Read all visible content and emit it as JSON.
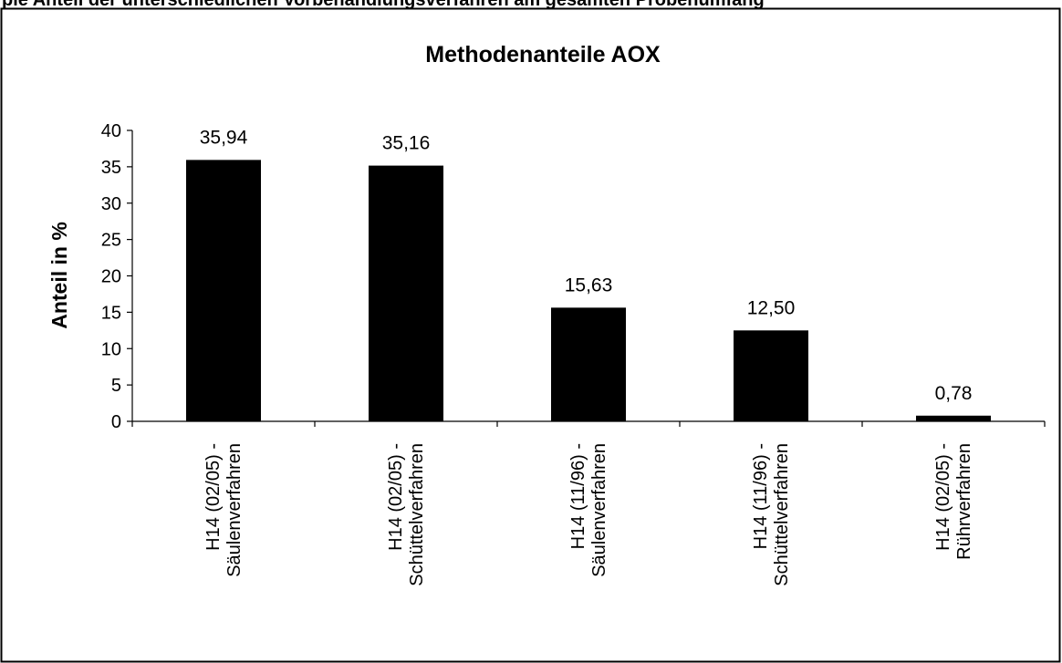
{
  "header_text": "pie Anteil der unterschiedlichen Vorbehandlungsverfahren am gesamten Probenumfang",
  "chart_data": {
    "type": "bar",
    "title": "Methodenanteile AOX",
    "xlabel": "",
    "ylabel": "Anteil in %",
    "ylim": [
      0,
      40
    ],
    "yticks": [
      0,
      5,
      10,
      15,
      20,
      25,
      30,
      35,
      40
    ],
    "grid": false,
    "legend": "none",
    "bar_color": "#000000",
    "categories": [
      [
        "H14 (02/05) -",
        "Säulenverfahren"
      ],
      [
        "H14 (02/05) -",
        "Schüttelverfahren"
      ],
      [
        "H14 (11/96) -",
        "Säulenverfahren"
      ],
      [
        "H14 (11/96) -",
        "Schüttelverfahren"
      ],
      [
        "H14 (02/05) -",
        "Rührverfahren"
      ]
    ],
    "values": [
      35.94,
      35.16,
      15.63,
      12.5,
      0.78
    ],
    "data_labels": [
      "35,94",
      "35,16",
      "15,63",
      "12,50",
      "0,78"
    ]
  }
}
